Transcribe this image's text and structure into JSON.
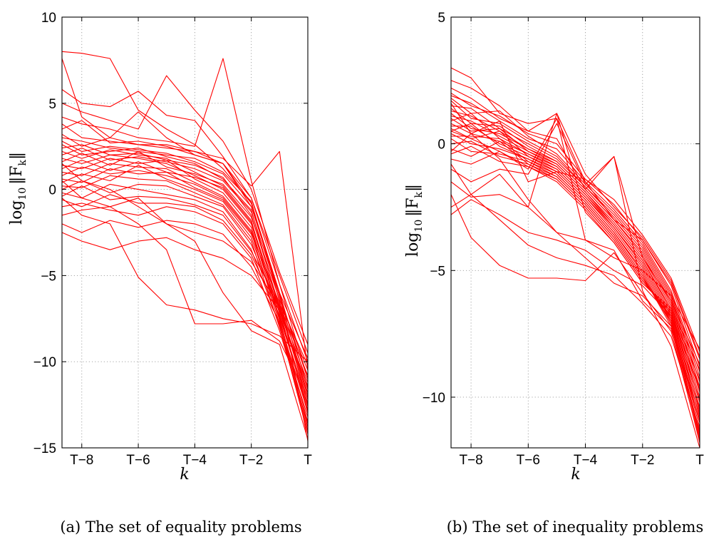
{
  "panels": [
    {
      "caption": "(a) The set of equality problems",
      "xlabel": "k",
      "ylabel_base": "log",
      "ylabel_sub": "10",
      "ylabel_norm": "‖F",
      "ylabel_norm_sub": "k",
      "ylabel_close": "‖"
    },
    {
      "caption": "(b) The set of inequality problems",
      "xlabel": "k",
      "ylabel_base": "log",
      "ylabel_sub": "10",
      "ylabel_norm": "‖F",
      "ylabel_norm_sub": "k",
      "ylabel_close": "‖"
    }
  ],
  "chart_data": [
    {
      "type": "line",
      "xlabel": "k",
      "ylabel": "log10 ||F_k||",
      "x_tick_labels": [
        "T−8",
        "T−6",
        "T−4",
        "T−2",
        "T"
      ],
      "x_tick_positions": [
        1,
        3,
        5,
        7,
        9
      ],
      "xlim": [
        0.3,
        9
      ],
      "ylim": [
        -15,
        10
      ],
      "y_ticks": [
        -15,
        -10,
        -5,
        0,
        5,
        10
      ],
      "grid": true,
      "color": "#ff0000",
      "x": [
        0.3,
        1,
        2,
        3,
        4,
        5,
        6,
        7,
        8,
        9
      ],
      "series": [
        {
          "values": [
            7.6,
            4.2,
            3.0,
            4.5,
            3.0,
            2.0,
            1.5,
            -1.0,
            -6.0,
            -14.6
          ]
        },
        {
          "values": [
            8.0,
            7.9,
            7.6,
            4.6,
            3.5,
            2.6,
            1.2,
            -0.8,
            -6.2,
            -12.0
          ]
        },
        {
          "values": [
            5.8,
            5.0,
            4.8,
            5.7,
            4.3,
            4.0,
            1.9,
            -0.5,
            -5.0,
            -9.5
          ]
        },
        {
          "values": [
            5.0,
            4.5,
            4.0,
            3.5,
            6.6,
            4.6,
            2.8,
            0.0,
            -4.8,
            -9.0
          ]
        },
        {
          "values": [
            4.2,
            3.8,
            3.5,
            3.0,
            2.8,
            2.5,
            7.6,
            0.5,
            -5.5,
            -11.0
          ]
        },
        {
          "values": [
            3.8,
            3.0,
            2.8,
            2.6,
            2.6,
            2.2,
            1.8,
            0.2,
            2.2,
            -10.5
          ]
        },
        {
          "values": [
            3.5,
            4.0,
            2.7,
            2.8,
            2.5,
            2.0,
            1.5,
            -0.5,
            -5.5,
            -10.0
          ]
        },
        {
          "values": [
            3.2,
            2.5,
            3.0,
            2.6,
            2.4,
            2.2,
            1.5,
            -0.8,
            -6.0,
            -11.5
          ]
        },
        {
          "values": [
            3.0,
            2.8,
            2.4,
            2.2,
            2.0,
            1.8,
            1.0,
            -0.7,
            -6.5,
            -12.5
          ]
        },
        {
          "values": [
            2.8,
            2.2,
            2.5,
            2.3,
            2.1,
            1.6,
            0.9,
            -1.0,
            -6.0,
            -9.8
          ]
        },
        {
          "values": [
            2.6,
            2.0,
            2.2,
            2.4,
            1.9,
            1.5,
            0.6,
            -1.2,
            -7.0,
            -13.0
          ]
        },
        {
          "values": [
            2.4,
            2.6,
            2.0,
            2.1,
            1.7,
            1.4,
            0.7,
            -1.5,
            -6.8,
            -12.0
          ]
        },
        {
          "values": [
            2.2,
            1.8,
            2.3,
            2.0,
            1.8,
            1.0,
            0.2,
            -1.8,
            -7.5,
            -13.5
          ]
        },
        {
          "values": [
            2.0,
            2.4,
            1.7,
            1.9,
            1.6,
            1.2,
            0.5,
            -1.3,
            -6.2,
            -11.0
          ]
        },
        {
          "values": [
            1.8,
            1.5,
            2.0,
            1.8,
            1.5,
            0.8,
            0.0,
            -2.0,
            -7.2,
            -12.8
          ]
        },
        {
          "values": [
            1.6,
            2.1,
            1.4,
            2.2,
            1.3,
            0.9,
            0.3,
            -1.6,
            -6.4,
            -10.5
          ]
        },
        {
          "values": [
            1.4,
            1.2,
            1.8,
            1.5,
            1.7,
            0.6,
            -0.2,
            -2.2,
            -7.6,
            -13.8
          ]
        },
        {
          "values": [
            1.2,
            1.7,
            1.1,
            1.6,
            1.0,
            0.7,
            0.1,
            -1.9,
            -6.9,
            -12.2
          ]
        },
        {
          "values": [
            1.0,
            0.8,
            1.5,
            1.3,
            1.2,
            0.4,
            -0.4,
            -2.4,
            -7.0,
            -11.8
          ]
        },
        {
          "values": [
            0.8,
            1.3,
            0.9,
            1.1,
            0.8,
            0.3,
            -0.5,
            -2.5,
            -7.8,
            -14.0
          ]
        },
        {
          "values": [
            0.6,
            0.4,
            1.2,
            0.9,
            1.0,
            0.1,
            -0.6,
            -2.6,
            -6.6,
            -10.2
          ]
        },
        {
          "values": [
            0.4,
            0.9,
            0.5,
            1.4,
            0.6,
            0.0,
            -0.7,
            -2.8,
            -7.4,
            -12.6
          ]
        },
        {
          "values": [
            0.2,
            0.1,
            0.8,
            0.6,
            0.5,
            -0.2,
            -0.9,
            -3.0,
            -8.0,
            -13.2
          ]
        },
        {
          "values": [
            0.0,
            0.5,
            -0.2,
            0.3,
            0.2,
            -0.4,
            -1.0,
            -3.2,
            -7.1,
            -11.4
          ]
        },
        {
          "values": [
            -0.2,
            -0.5,
            0.3,
            0.0,
            -0.3,
            -0.6,
            -1.3,
            -3.5,
            -7.9,
            -14.2
          ]
        },
        {
          "values": [
            -0.4,
            0.2,
            -0.6,
            -0.4,
            -0.5,
            -0.9,
            -1.5,
            -3.6,
            -6.7,
            -10.8
          ]
        },
        {
          "values": [
            -0.6,
            -1.0,
            -0.3,
            -0.8,
            -0.8,
            -1.0,
            -1.8,
            -3.8,
            -7.3,
            -12.4
          ]
        },
        {
          "values": [
            -1.0,
            -0.8,
            -1.2,
            -1.5,
            -1.0,
            -1.3,
            -2.0,
            -4.0,
            -8.2,
            -13.6
          ]
        },
        {
          "values": [
            -1.5,
            -1.2,
            -1.0,
            -0.5,
            -2.0,
            -2.5,
            -3.0,
            -4.2,
            -6.8,
            -11.2
          ]
        },
        {
          "values": [
            -2.0,
            -2.5,
            -1.8,
            -2.2,
            -1.8,
            -2.0,
            -2.6,
            -4.5,
            -7.7,
            -12.9
          ]
        },
        {
          "values": [
            -2.5,
            -3.0,
            -3.5,
            -3.0,
            -2.8,
            -3.5,
            -4.0,
            -5.0,
            -7.0,
            -11.6
          ]
        },
        {
          "values": [
            -0.5,
            -1.5,
            -2.0,
            -5.1,
            -6.7,
            -7.0,
            -7.5,
            -7.8,
            -8.5,
            -10.0
          ]
        },
        {
          "values": [
            0.5,
            -0.5,
            -1.0,
            -2.0,
            -3.5,
            -7.8,
            -7.8,
            -7.6,
            -8.8,
            -12.1
          ]
        },
        {
          "values": [
            1.5,
            0.5,
            0.0,
            -1.0,
            -2.0,
            -3.0,
            -6.0,
            -8.2,
            -9.0,
            -14.5
          ]
        }
      ]
    },
    {
      "type": "line",
      "xlabel": "k",
      "ylabel": "log10 ||F_k||",
      "x_tick_labels": [
        "T−8",
        "T−6",
        "T−4",
        "T−2",
        "T"
      ],
      "x_tick_positions": [
        1,
        3,
        5,
        7,
        9
      ],
      "xlim": [
        0.3,
        9
      ],
      "ylim": [
        -12,
        5
      ],
      "y_ticks": [
        -10,
        -5,
        0,
        5
      ],
      "grid": true,
      "color": "#ff0000",
      "x": [
        0.3,
        1,
        2,
        3,
        4,
        5,
        6,
        7,
        8,
        9
      ],
      "series": [
        {
          "values": [
            3.0,
            2.6,
            1.2,
            0.8,
            1.0,
            -1.5,
            -3.0,
            -3.8,
            -5.5,
            -8.5
          ]
        },
        {
          "values": [
            2.5,
            2.2,
            1.5,
            0.5,
            0.2,
            -1.8,
            -0.5,
            -5.8,
            -8.0,
            -12.0
          ]
        },
        {
          "values": [
            2.2,
            1.8,
            1.0,
            0.5,
            1.2,
            -1.2,
            -2.5,
            -3.7,
            -5.4,
            -8.4
          ]
        },
        {
          "values": [
            2.0,
            1.5,
            1.1,
            0.4,
            0.0,
            -1.4,
            -2.4,
            -3.8,
            -5.6,
            -8.8
          ]
        },
        {
          "values": [
            1.9,
            1.6,
            0.9,
            0.2,
            -0.2,
            -1.5,
            -2.6,
            -3.9,
            -5.8,
            -9.0
          ]
        },
        {
          "values": [
            1.8,
            1.2,
            1.3,
            0.3,
            -0.4,
            -1.6,
            -2.7,
            -4.0,
            -5.9,
            -9.2
          ]
        },
        {
          "values": [
            1.7,
            1.0,
            0.8,
            0.1,
            -0.5,
            -1.7,
            -2.8,
            -4.1,
            -6.0,
            -9.4
          ]
        },
        {
          "values": [
            1.5,
            1.4,
            0.6,
            0.0,
            -0.6,
            -1.7,
            -2.9,
            -4.2,
            -6.1,
            -9.6
          ]
        },
        {
          "values": [
            1.4,
            0.8,
            0.7,
            -0.1,
            -0.7,
            -1.8,
            -3.0,
            -4.3,
            -6.2,
            -9.8
          ]
        },
        {
          "values": [
            1.3,
            1.1,
            0.5,
            -0.2,
            -0.7,
            -1.8,
            -3.0,
            -4.4,
            -6.3,
            -10.0
          ]
        },
        {
          "values": [
            1.2,
            0.6,
            0.4,
            -0.2,
            -0.8,
            -1.9,
            -3.1,
            -4.5,
            -6.4,
            -10.2
          ]
        },
        {
          "values": [
            1.1,
            0.9,
            0.3,
            -0.3,
            -0.8,
            -1.9,
            -3.2,
            -4.6,
            -6.5,
            -10.4
          ]
        },
        {
          "values": [
            1.0,
            0.5,
            0.6,
            -0.3,
            -0.9,
            -2.0,
            -3.2,
            -4.6,
            -6.6,
            -10.6
          ]
        },
        {
          "values": [
            0.9,
            1.2,
            0.2,
            -0.4,
            -0.9,
            -2.0,
            -3.3,
            -4.7,
            -6.7,
            -10.8
          ]
        },
        {
          "values": [
            0.8,
            0.4,
            0.1,
            -0.4,
            -1.0,
            -2.1,
            -3.3,
            -4.8,
            -6.8,
            -11.0
          ]
        },
        {
          "values": [
            0.7,
            0.7,
            0.0,
            -0.5,
            -1.0,
            -2.1,
            -3.4,
            -4.9,
            -6.9,
            -11.2
          ]
        },
        {
          "values": [
            0.6,
            0.2,
            0.5,
            -0.5,
            -1.1,
            -2.2,
            -3.5,
            -5.0,
            -7.0,
            -11.4
          ]
        },
        {
          "values": [
            0.5,
            0.8,
            -0.1,
            -0.6,
            -1.1,
            -2.2,
            -3.5,
            -5.1,
            -7.1,
            -11.6
          ]
        },
        {
          "values": [
            0.4,
            0.0,
            -0.2,
            -0.6,
            -1.2,
            -2.3,
            -3.6,
            -5.2,
            -7.2,
            -11.8
          ]
        },
        {
          "values": [
            0.3,
            0.3,
            0.2,
            -0.7,
            -1.2,
            -2.3,
            -3.6,
            -5.2,
            -7.1,
            -11.5
          ]
        },
        {
          "values": [
            0.2,
            -0.3,
            -0.4,
            -0.7,
            -1.3,
            -2.4,
            -3.7,
            -5.3,
            -7.0,
            -11.0
          ]
        },
        {
          "values": [
            0.0,
            0.1,
            -0.5,
            -0.8,
            -1.3,
            -2.4,
            -3.7,
            -5.3,
            -6.9,
            -10.5
          ]
        },
        {
          "values": [
            -0.2,
            -0.5,
            0.1,
            -0.8,
            -1.4,
            -2.5,
            -3.8,
            -5.4,
            -6.8,
            -10.1
          ]
        },
        {
          "values": [
            -0.4,
            -0.1,
            -0.7,
            -0.9,
            -1.4,
            -2.5,
            -3.8,
            -5.4,
            -6.7,
            -9.7
          ]
        },
        {
          "values": [
            -0.6,
            -0.8,
            -0.3,
            -0.9,
            -1.5,
            -2.6,
            -3.9,
            -5.5,
            -6.6,
            -9.3
          ]
        },
        {
          "values": [
            -0.8,
            -2.0,
            -1.2,
            -2.5,
            1.2,
            -2.7,
            -3.9,
            -5.5,
            -6.5,
            -8.9
          ]
        },
        {
          "values": [
            -1.0,
            -1.5,
            -1.0,
            -1.2,
            0.8,
            -1.6,
            -0.5,
            -4.5,
            -6.2,
            -8.7
          ]
        },
        {
          "values": [
            0.5,
            0.2,
            -0.3,
            -1.0,
            1.0,
            -3.8,
            -4.2,
            -6.2,
            -7.3,
            -10.9
          ]
        },
        {
          "values": [
            -0.3,
            0.4,
            0.9,
            -1.5,
            -1.1,
            -1.4,
            -2.2,
            -3.6,
            -5.3,
            -8.2
          ]
        },
        {
          "values": [
            -1.5,
            -2.1,
            -2.0,
            -2.5,
            -3.5,
            -3.8,
            -4.5,
            -5.0,
            -6.0,
            -8.1
          ]
        },
        {
          "values": [
            -2.0,
            -3.7,
            -4.8,
            -5.3,
            -5.3,
            -5.4,
            -4.3,
            -5.9,
            -7.4,
            -11.7
          ]
        },
        {
          "values": [
            -2.5,
            -2.0,
            -3.0,
            -4.0,
            -4.5,
            -4.8,
            -5.2,
            -6.3,
            -7.6,
            -11.3
          ]
        },
        {
          "values": [
            -2.8,
            -2.2,
            -2.8,
            -3.5,
            -3.8,
            -4.2,
            -5.0,
            -5.6,
            -6.8,
            -9.6
          ]
        },
        {
          "values": [
            1.6,
            0.4,
            -0.6,
            -2.2,
            -3.5,
            -4.5,
            -5.5,
            -6.0,
            -7.2,
            -10.7
          ]
        }
      ]
    }
  ]
}
